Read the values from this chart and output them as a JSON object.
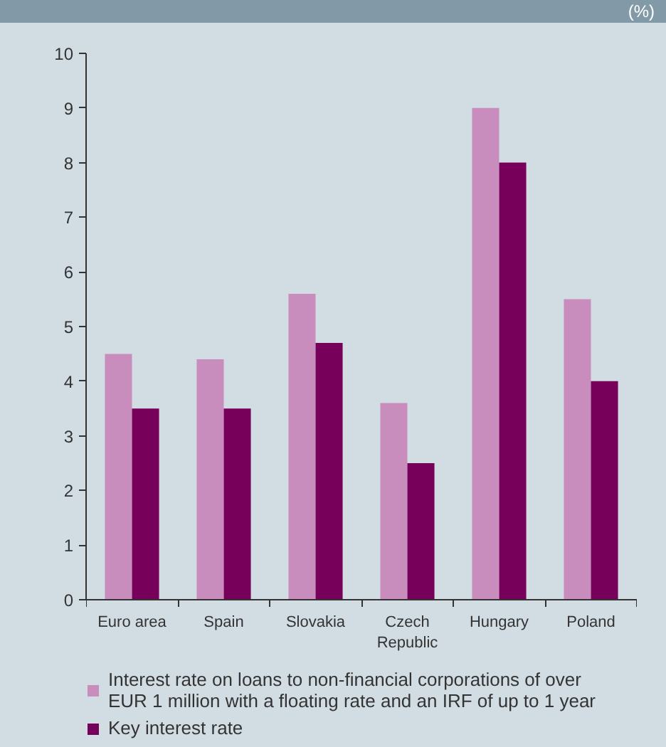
{
  "chart_data": {
    "type": "bar",
    "subtitle": "(%)",
    "categories": [
      "Euro area",
      "Spain",
      "Slovakia",
      "Czech Republic",
      "Hungary",
      "Poland"
    ],
    "series": [
      {
        "name": "Interest rate on loans to non-financial corporations of over EUR 1 million with a floating rate and an IRF of up to 1 year",
        "color": "#c98dbd",
        "values": [
          4.5,
          4.4,
          5.6,
          3.6,
          9,
          5.5
        ]
      },
      {
        "name": "Key interest rate",
        "color": "#77005a",
        "values": [
          3.5,
          3.5,
          4.7,
          2.5,
          8,
          4
        ]
      }
    ],
    "ylim": [
      0,
      10
    ],
    "yticks": [
      0,
      1,
      2,
      3,
      4,
      5,
      6,
      7,
      8,
      9,
      10
    ],
    "grid": false,
    "legend": "bottom"
  }
}
